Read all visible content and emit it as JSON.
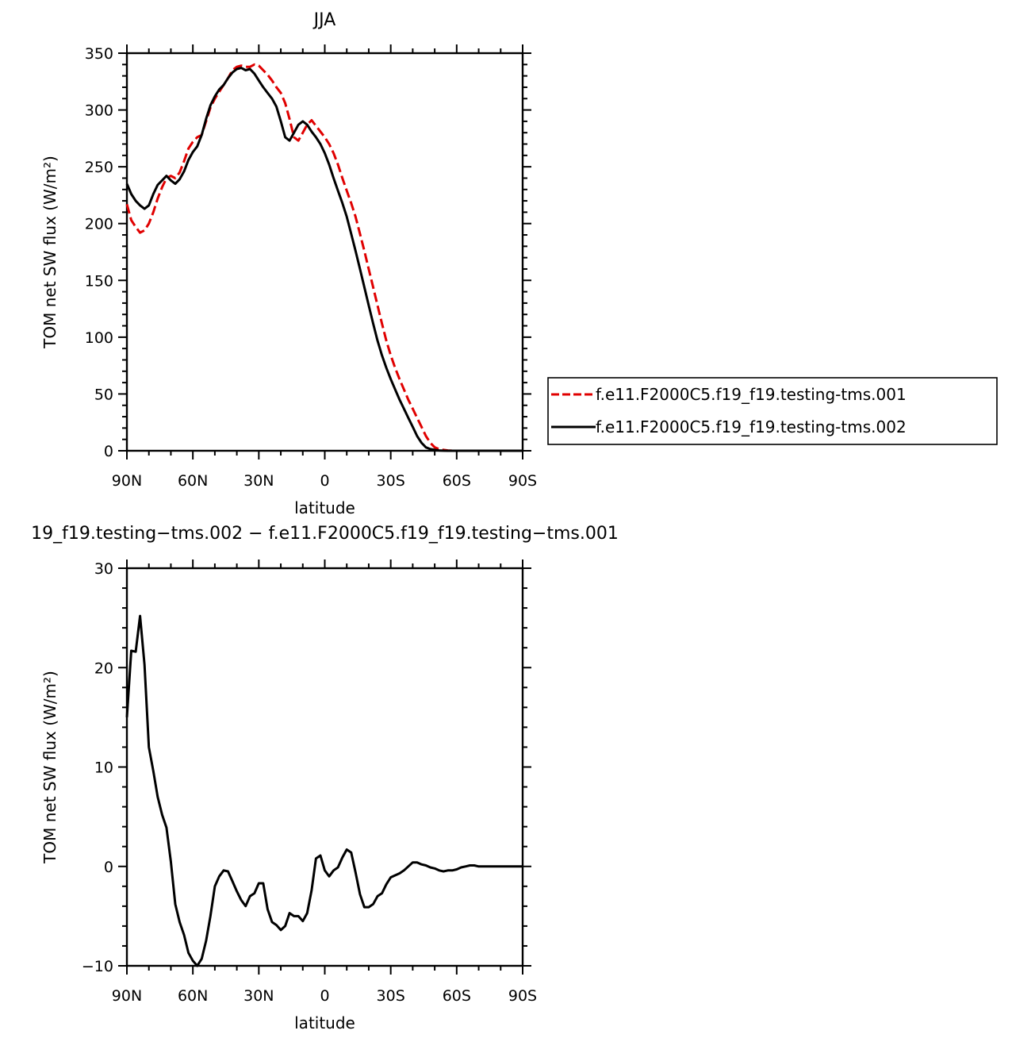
{
  "chart_data": [
    {
      "type": "line",
      "title": "JJA",
      "xlabel": "latitude",
      "ylabel": "TOM net SW flux (W/m²)",
      "xlim": [
        90,
        -90
      ],
      "ylim": [
        0,
        350
      ],
      "xticks": [
        90,
        60,
        30,
        0,
        -30,
        -60,
        -90
      ],
      "xtick_labels": [
        "90N",
        "60N",
        "30N",
        "0",
        "30S",
        "60S",
        "90S"
      ],
      "yticks": [
        0,
        50,
        100,
        150,
        200,
        250,
        300,
        350
      ],
      "ytick_labels": [
        "0",
        "50",
        "100",
        "150",
        "200",
        "250",
        "300",
        "350"
      ],
      "legend_position": "right",
      "series": [
        {
          "name": "f.e11.F2000C5.f19_f19.testing-tms.001",
          "color": "#e00000",
          "dash": "dashed",
          "x": [
            90,
            88,
            86,
            84,
            82,
            80,
            78,
            76,
            74,
            72,
            70,
            68,
            66,
            64,
            62,
            60,
            58,
            56,
            54,
            52,
            50,
            48,
            46,
            44,
            42,
            40,
            38,
            36,
            34,
            32,
            30,
            28,
            26,
            24,
            22,
            20,
            18,
            16,
            14,
            12,
            10,
            8,
            6,
            4,
            2,
            0,
            -2,
            -4,
            -6,
            -8,
            -10,
            -12,
            -14,
            -16,
            -18,
            -20,
            -22,
            -24,
            -26,
            -28,
            -30,
            -32,
            -34,
            -36,
            -38,
            -40,
            -42,
            -44,
            -46,
            -48,
            -50,
            -52,
            -54,
            -56,
            -58,
            -60,
            -62,
            -64,
            -66,
            -68,
            -70,
            -72,
            -74,
            -76,
            -78,
            -80,
            -82,
            -84,
            -86,
            -88,
            -90
          ],
          "y": [
            217,
            203,
            197,
            192,
            194,
            200,
            210,
            222,
            232,
            240,
            242,
            240,
            245,
            255,
            266,
            272,
            276,
            278,
            290,
            302,
            310,
            316,
            322,
            328,
            335,
            338,
            339,
            338,
            338,
            340,
            339,
            335,
            331,
            326,
            320,
            315,
            306,
            292,
            276,
            273,
            280,
            287,
            291,
            286,
            281,
            276,
            270,
            262,
            252,
            240,
            229,
            218,
            206,
            191,
            176,
            160,
            144,
            128,
            112,
            97,
            84,
            73,
            63,
            54,
            45,
            37,
            29,
            21,
            13,
            7,
            3,
            1.5,
            0.8,
            0.3,
            0.1,
            0,
            0,
            0,
            0,
            0,
            0,
            0,
            0,
            0,
            0,
            0,
            0,
            0,
            0,
            0,
            0
          ]
        },
        {
          "name": "f.e11.F2000C5.f19_f19.testing-tms.002",
          "color": "#000000",
          "dash": "solid",
          "x": [
            90,
            88,
            86,
            84,
            82,
            80,
            78,
            76,
            74,
            72,
            70,
            68,
            66,
            64,
            62,
            60,
            58,
            56,
            54,
            52,
            50,
            48,
            46,
            44,
            42,
            40,
            38,
            36,
            34,
            32,
            30,
            28,
            26,
            24,
            22,
            20,
            18,
            16,
            14,
            12,
            10,
            8,
            6,
            4,
            2,
            0,
            -2,
            -4,
            -6,
            -8,
            -10,
            -12,
            -14,
            -16,
            -18,
            -20,
            -22,
            -24,
            -26,
            -28,
            -30,
            -32,
            -34,
            -36,
            -38,
            -40,
            -42,
            -44,
            -46,
            -48,
            -50,
            -52,
            -54,
            -56,
            -58,
            -60,
            -62,
            -64,
            -66,
            -68,
            -70,
            -72,
            -74,
            -76,
            -78,
            -80,
            -82,
            -84,
            -86,
            -88,
            -90
          ],
          "y": [
            235,
            226,
            220,
            216,
            213,
            216,
            226,
            234,
            238,
            242,
            238,
            235,
            239,
            246,
            256,
            263,
            268,
            278,
            292,
            304,
            312,
            318,
            322,
            328,
            333,
            336,
            337,
            335,
            336,
            332,
            326,
            320,
            315,
            310,
            303,
            290,
            276,
            273,
            280,
            287,
            290,
            287,
            281,
            276,
            270,
            262,
            252,
            240,
            229,
            218,
            206,
            191,
            176,
            160,
            144,
            128,
            112,
            97,
            84,
            73,
            63,
            54,
            45,
            37,
            29,
            21,
            13,
            7,
            3,
            1.5,
            0.8,
            0.3,
            0.1,
            0,
            0,
            0,
            0,
            0,
            0,
            0,
            0,
            0,
            0,
            0,
            0,
            0,
            0,
            0,
            0,
            0,
            0
          ]
        }
      ]
    },
    {
      "type": "line",
      "title": "19_f19.testing−tms.002 − f.e11.F2000C5.f19_f19.testing−tms.001",
      "xlabel": "latitude",
      "ylabel": "TOM net SW flux (W/m²)",
      "xlim": [
        90,
        -90
      ],
      "ylim": [
        -10,
        30
      ],
      "xticks": [
        90,
        60,
        30,
        0,
        -30,
        -60,
        -90
      ],
      "xtick_labels": [
        "90N",
        "60N",
        "30N",
        "0",
        "30S",
        "60S",
        "90S"
      ],
      "yticks": [
        -10,
        0,
        10,
        20,
        30
      ],
      "ytick_labels": [
        "−10",
        "0",
        "10",
        "20",
        "30"
      ],
      "series": [
        {
          "color": "#000000",
          "dash": "solid",
          "x": [
            90,
            88,
            86,
            84,
            82,
            80,
            78,
            76,
            74,
            72,
            70,
            68,
            66,
            64,
            62,
            60,
            58,
            56,
            54,
            52,
            50,
            48,
            46,
            44,
            42,
            40,
            38,
            36,
            34,
            32,
            30,
            28,
            26,
            24,
            22,
            20,
            18,
            16,
            14,
            12,
            10,
            8,
            6,
            4,
            2,
            0,
            -2,
            -4,
            -6,
            -8,
            -10,
            -12,
            -14,
            -16,
            -18,
            -20,
            -22,
            -24,
            -26,
            -28,
            -30,
            -32,
            -34,
            -36,
            -38,
            -40,
            -42,
            -44,
            -46,
            -48,
            -50,
            -52,
            -54,
            -56,
            -58,
            -60,
            -62,
            -64,
            -66,
            -68,
            -70,
            -72,
            -74,
            -76,
            -78,
            -80,
            -82,
            -84,
            -86,
            -88,
            -90
          ],
          "y": [
            15.0,
            21.7,
            21.6,
            25.2,
            20.3,
            12.0,
            9.6,
            7.0,
            5.2,
            3.9,
            0.5,
            -3.8,
            -5.6,
            -6.9,
            -8.7,
            -9.5,
            -10.0,
            -9.3,
            -7.5,
            -5.0,
            -2.0,
            -1.0,
            -0.4,
            -0.5,
            -1.5,
            -2.5,
            -3.4,
            -4.0,
            -3.0,
            -2.7,
            -1.7,
            -1.7,
            -4.3,
            -5.6,
            -5.9,
            -6.4,
            -6.0,
            -4.7,
            -5.0,
            -5.0,
            -5.5,
            -4.7,
            -2.4,
            0.8,
            1.1,
            -0.4,
            -1.0,
            -0.4,
            -0.1,
            0.9,
            1.7,
            1.4,
            -0.6,
            -2.8,
            -4.1,
            -4.1,
            -3.8,
            -3.0,
            -2.7,
            -1.8,
            -1.1,
            -0.9,
            -0.7,
            -0.4,
            0.0,
            0.4,
            0.4,
            0.2,
            0.1,
            -0.1,
            -0.2,
            -0.4,
            -0.5,
            -0.4,
            -0.4,
            -0.3,
            -0.1,
            0.0,
            0.1,
            0.1,
            0.0,
            0.0,
            0.0,
            0.0,
            0.0,
            0.0,
            0.0,
            0.0,
            0.0,
            0.0,
            0.0
          ]
        }
      ]
    }
  ]
}
